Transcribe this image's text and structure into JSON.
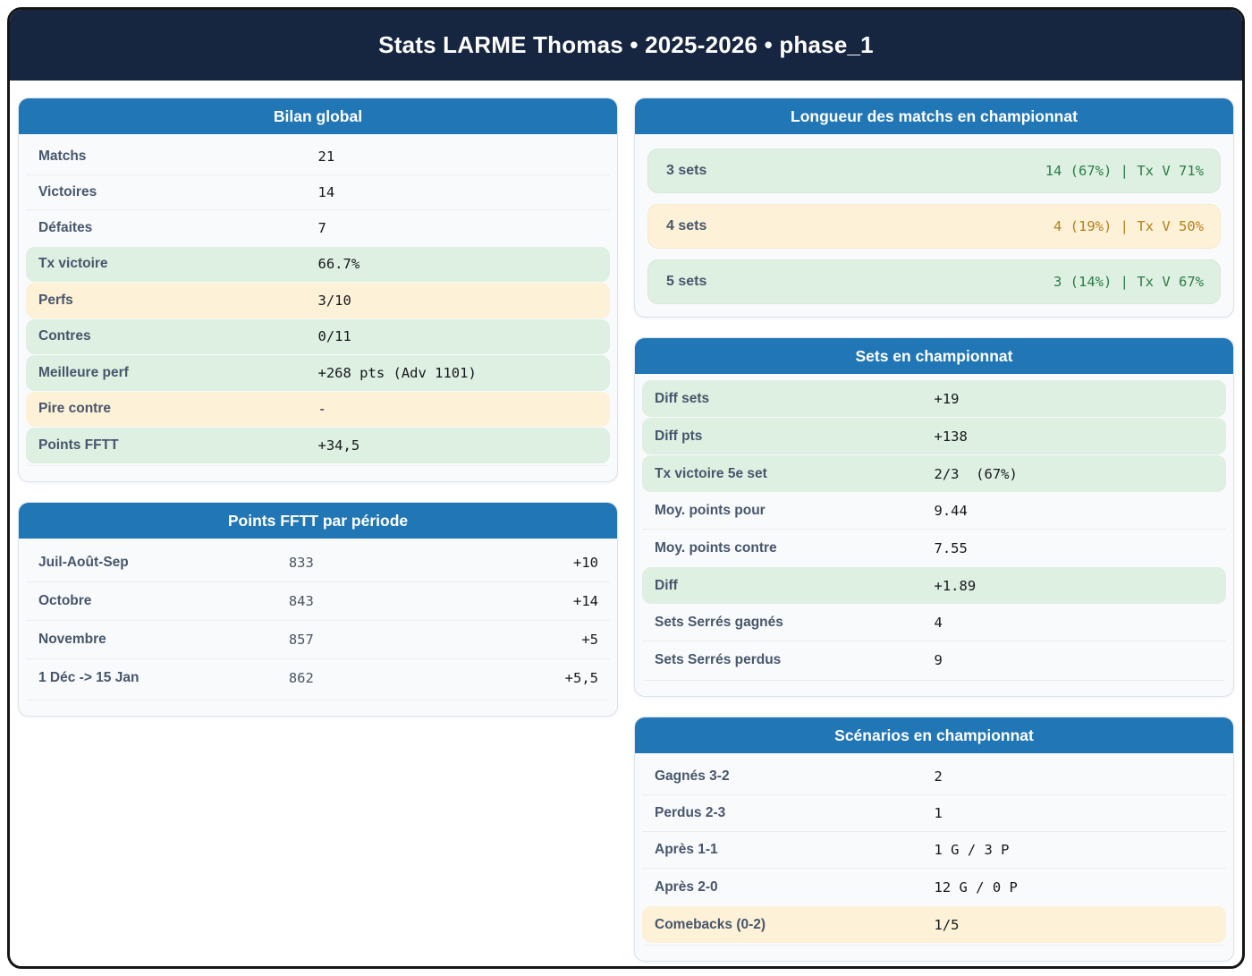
{
  "title": "Stats LARME Thomas • 2025-2026 • phase_1",
  "colors": {
    "header_navy": "#162540",
    "card_header_blue": "#2176b5",
    "highlight_green_bg": "#def0e2",
    "highlight_yellow_bg": "#fdf1d7",
    "green_text": "#2a7d46",
    "amber_text": "#b5801b",
    "label_slate": "#47566b"
  },
  "cards": {
    "bilan": {
      "title": "Bilan global",
      "rows": [
        {
          "label": "Matchs",
          "value": "21",
          "highlight": "none"
        },
        {
          "label": "Victoires",
          "value": "14",
          "highlight": "none"
        },
        {
          "label": "Défaites",
          "value": "7",
          "highlight": "none"
        },
        {
          "label": "Tx victoire",
          "value": "66.7%",
          "highlight": "green"
        },
        {
          "label": "Perfs",
          "value": "3/10",
          "highlight": "yellow"
        },
        {
          "label": "Contres",
          "value": "0/11",
          "highlight": "green"
        },
        {
          "label": "Meilleure perf",
          "value": "+268 pts (Adv 1101)",
          "highlight": "green"
        },
        {
          "label": "Pire contre",
          "value": "-",
          "highlight": "yellow"
        },
        {
          "label": "Points FFTT",
          "value": "+34,5",
          "highlight": "green"
        }
      ]
    },
    "periodes": {
      "title": "Points FFTT par période",
      "rows": [
        {
          "label": "Juil-Août-Sep",
          "points": "833",
          "delta": "+10"
        },
        {
          "label": "Octobre",
          "points": "843",
          "delta": "+14"
        },
        {
          "label": "Novembre",
          "points": "857",
          "delta": "+5"
        },
        {
          "label": "1 Déc -> 15 Jan",
          "points": "862",
          "delta": "+5,5"
        }
      ]
    },
    "longueur": {
      "title": "Longueur des matchs en championnat",
      "rows": [
        {
          "label": "3 sets",
          "value": "14 (67%) | Tx V 71%",
          "tone": "green"
        },
        {
          "label": "4 sets",
          "value": "4 (19%) | Tx V 50%",
          "tone": "yellow"
        },
        {
          "label": "5 sets",
          "value": "3 (14%) | Tx V 67%",
          "tone": "green"
        }
      ]
    },
    "sets": {
      "title": "Sets en championnat",
      "rows": [
        {
          "label": "Diff sets",
          "value": "+19",
          "highlight": "green"
        },
        {
          "label": "Diff pts",
          "value": "+138",
          "highlight": "green"
        },
        {
          "label": "Tx victoire 5e set",
          "value": "2/3  (67%)",
          "highlight": "green"
        },
        {
          "label": "Moy. points pour",
          "value": "9.44",
          "highlight": "none"
        },
        {
          "label": "Moy. points contre",
          "value": "7.55",
          "highlight": "none"
        },
        {
          "label": "Diff",
          "value": "+1.89",
          "highlight": "green"
        },
        {
          "label": "Sets Serrés gagnés",
          "value": "4",
          "highlight": "none"
        },
        {
          "label": "Sets Serrés perdus",
          "value": "9",
          "highlight": "none"
        }
      ]
    },
    "scenarios": {
      "title": "Scénarios en championnat",
      "rows": [
        {
          "label": "Gagnés 3-2",
          "value": "2",
          "highlight": "none"
        },
        {
          "label": "Perdus 2-3",
          "value": "1",
          "highlight": "none"
        },
        {
          "label": "Après 1-1",
          "value": "1 G / 3 P",
          "highlight": "none"
        },
        {
          "label": "Après 2-0",
          "value": "12 G / 0 P",
          "highlight": "none"
        },
        {
          "label": "Comebacks (0-2)",
          "value": "1/5",
          "highlight": "yellow"
        }
      ]
    }
  }
}
